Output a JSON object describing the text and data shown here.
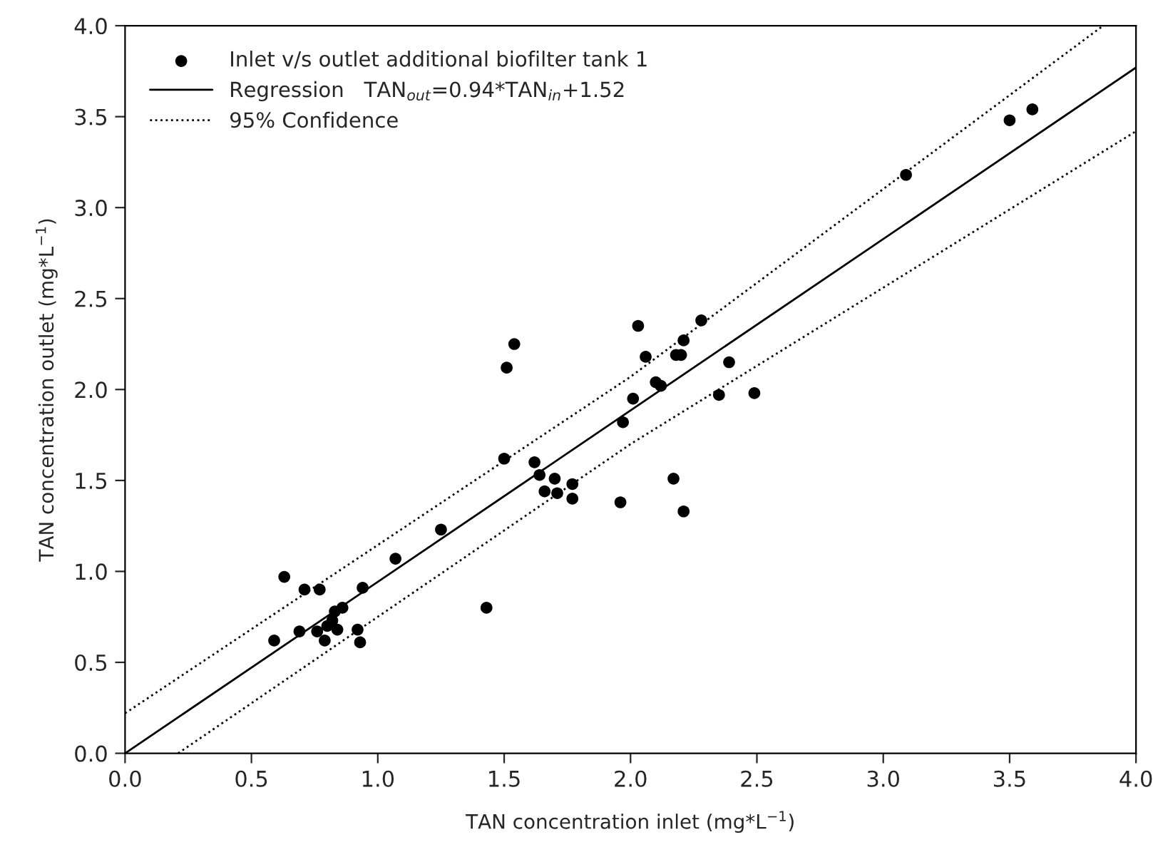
{
  "chart_data": {
    "type": "scatter",
    "xlabel": "TAN concentration inlet (mg*L$^{−1}$)",
    "ylabel": "TAN concentration outlet (mg*L$^{−1}$)",
    "xlim": [
      0,
      4
    ],
    "ylim": [
      0,
      4
    ],
    "xticks": [
      {
        "value": 0,
        "label": "0.0"
      },
      0.5,
      {
        "value": 1,
        "label": "1.0"
      },
      1.5,
      {
        "value": 2,
        "label": "2.0"
      },
      2.5,
      {
        "value": 3,
        "label": "3.0"
      },
      3.5,
      {
        "value": 4,
        "label": "4.0"
      }
    ],
    "yticks": [
      {
        "value": 0,
        "label": "0.0"
      },
      0.5,
      {
        "value": 1,
        "label": "1.0"
      },
      1.5,
      {
        "value": 2,
        "label": "2.0"
      },
      2.5,
      {
        "value": 3,
        "label": "3.0"
      },
      3.5,
      {
        "value": 4,
        "label": "4.0"
      }
    ],
    "grid": false,
    "legend": "top left",
    "series": [
      {
        "name": "Inlet v/s outlet additional biofilter tank 1",
        "color": "#000000",
        "marker": "circle",
        "x": [
          0.59,
          0.63,
          0.69,
          0.71,
          0.76,
          0.77,
          0.79,
          0.8,
          0.82,
          0.83,
          0.84,
          0.86,
          0.92,
          0.93,
          0.94,
          1.07,
          1.25,
          1.43,
          1.5,
          1.51,
          1.54,
          1.62,
          1.64,
          1.66,
          1.7,
          1.71,
          1.77,
          1.77,
          1.96,
          1.97,
          2.01,
          2.03,
          2.06,
          2.1,
          2.12,
          2.17,
          2.18,
          2.2,
          2.21,
          2.21,
          2.28,
          2.35,
          2.39,
          2.49,
          3.09,
          3.5,
          3.59
        ],
        "values": [
          0.62,
          0.97,
          0.67,
          0.9,
          0.67,
          0.9,
          0.62,
          0.7,
          0.73,
          0.78,
          0.68,
          0.8,
          0.68,
          0.61,
          0.91,
          1.07,
          1.23,
          0.8,
          1.62,
          2.12,
          2.25,
          1.6,
          1.53,
          1.44,
          1.51,
          1.43,
          1.48,
          1.4,
          1.38,
          1.82,
          1.95,
          2.35,
          2.18,
          2.04,
          2.02,
          1.51,
          2.19,
          2.19,
          2.27,
          1.33,
          2.38,
          1.97,
          2.15,
          1.98,
          3.18,
          3.48,
          3.54
        ]
      },
      {
        "type": "line",
        "name": "Regression   TAN$_{out}$=0.94*TAN$_{in}$+1.52",
        "color": "#000000",
        "line_style": "solid",
        "x": [
          0,
          4
        ],
        "values": [
          0,
          3.77
        ]
      },
      {
        "type": "line",
        "name": "95% Confidence",
        "color": "#000000",
        "line_style": "dotted",
        "x": [
          0,
          2,
          3.87
        ],
        "values": [
          0.22,
          2.07,
          4.0
        ]
      },
      {
        "type": "line",
        "color": "#000000",
        "line_style": "dotted",
        "x": [
          0.21,
          2,
          4
        ],
        "values": [
          0,
          1.7,
          3.42
        ]
      }
    ]
  }
}
